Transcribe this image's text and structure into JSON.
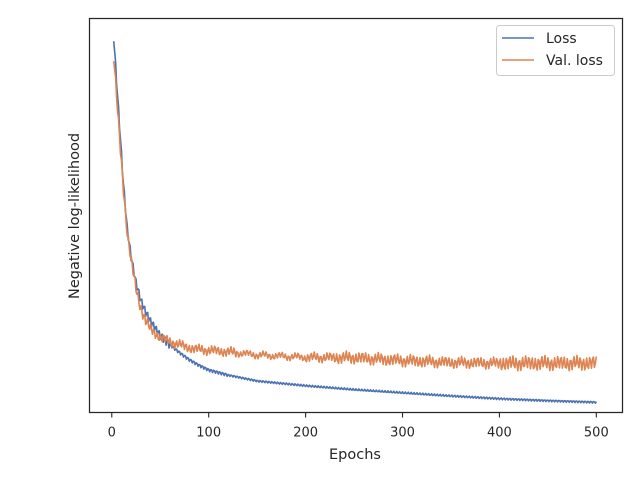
{
  "chart_data": {
    "type": "line",
    "xlabel": "Epochs",
    "ylabel": "Negative log-likelihood",
    "xlim": [
      -23,
      527
    ],
    "ylim": [
      0.0,
      1.0
    ],
    "x_ticks": [
      0,
      100,
      200,
      300,
      400,
      500
    ],
    "y_ticks_shown": false,
    "grid": false,
    "legend_position": "top-right",
    "series": [
      {
        "name": "Loss",
        "color": "#4c72b0",
        "points": [
          [
            2,
            0.952
          ],
          [
            5,
            0.84
          ],
          [
            8,
            0.73
          ],
          [
            12,
            0.58
          ],
          [
            16,
            0.465
          ],
          [
            20,
            0.395
          ],
          [
            25,
            0.33
          ],
          [
            30,
            0.285
          ],
          [
            35,
            0.255
          ],
          [
            40,
            0.232
          ],
          [
            50,
            0.196
          ],
          [
            60,
            0.172
          ],
          [
            70,
            0.152
          ],
          [
            80,
            0.134
          ],
          [
            90,
            0.12
          ],
          [
            100,
            0.108
          ],
          [
            120,
            0.095
          ],
          [
            150,
            0.08
          ],
          [
            200,
            0.068
          ],
          [
            250,
            0.058
          ],
          [
            300,
            0.05
          ],
          [
            350,
            0.042
          ],
          [
            400,
            0.035
          ],
          [
            450,
            0.03
          ],
          [
            500,
            0.026
          ]
        ]
      },
      {
        "name": "Val. loss",
        "color": "#dd8452",
        "points": [
          [
            2,
            0.9
          ],
          [
            5,
            0.8
          ],
          [
            8,
            0.7
          ],
          [
            12,
            0.57
          ],
          [
            16,
            0.455
          ],
          [
            20,
            0.385
          ],
          [
            25,
            0.315
          ],
          [
            30,
            0.265
          ],
          [
            35,
            0.232
          ],
          [
            40,
            0.212
          ],
          [
            50,
            0.19
          ],
          [
            60,
            0.18
          ],
          [
            70,
            0.172
          ],
          [
            80,
            0.164
          ],
          [
            90,
            0.16
          ],
          [
            100,
            0.158
          ],
          [
            120,
            0.154
          ],
          [
            150,
            0.146
          ],
          [
            200,
            0.14
          ],
          [
            250,
            0.139
          ],
          [
            300,
            0.132
          ],
          [
            350,
            0.127
          ],
          [
            400,
            0.125
          ],
          [
            450,
            0.125
          ],
          [
            500,
            0.125
          ]
        ]
      }
    ]
  }
}
